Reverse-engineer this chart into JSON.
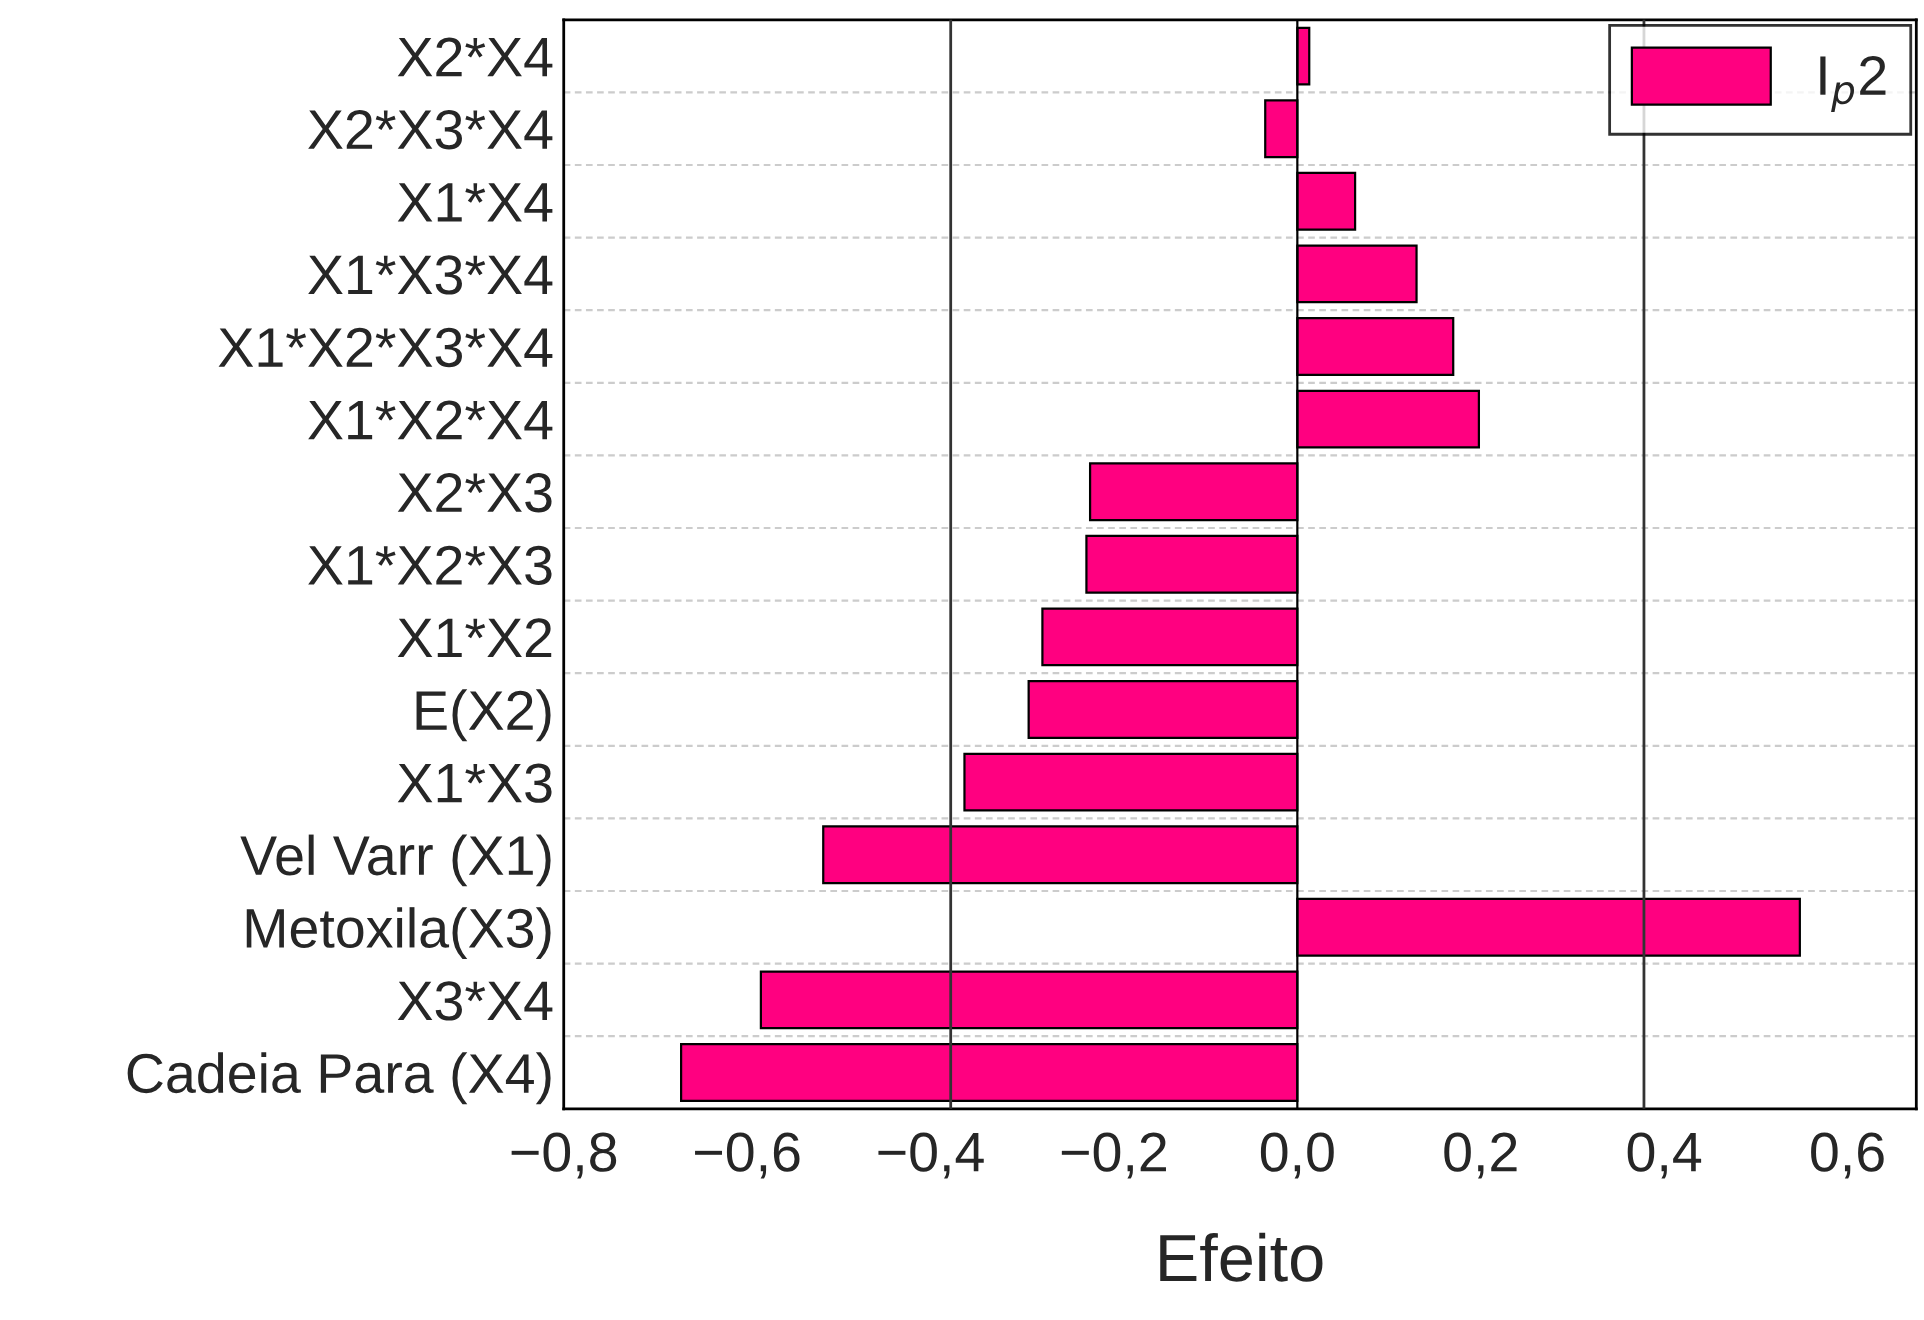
{
  "chart_data": {
    "type": "bar",
    "orientation": "horizontal",
    "xlabel": "Efeito",
    "categories": [
      "X2*X4",
      "X2*X3*X4",
      "X1*X4",
      "X1*X3*X4",
      "X1*X2*X3*X4",
      "X1*X2*X4",
      "X2*X3",
      "X1*X2*X3",
      "X1*X2",
      "E(X2)",
      "X1*X3",
      "Vel Varr (X1)",
      "Metoxila(X3)",
      "X3*X4",
      "Cadeia Para (X4)"
    ],
    "series": [
      {
        "name": "I$_{p}$2",
        "color": "#ff0080",
        "values": [
          0.013,
          -0.035,
          0.063,
          0.13,
          0.17,
          0.198,
          -0.226,
          -0.23,
          -0.278,
          -0.293,
          -0.363,
          -0.517,
          0.548,
          -0.585,
          -0.672
        ]
      }
    ],
    "xlim": [
      -0.8,
      0.675
    ],
    "xticks": [
      {
        "value": -0.8,
        "label": "−0,8"
      },
      {
        "value": -0.6,
        "label": "−0,6"
      },
      {
        "value": -0.4,
        "label": "−0,4"
      },
      {
        "value": -0.2,
        "label": "−0,2"
      },
      {
        "value": 0.0,
        "label": "0,0"
      },
      {
        "value": 0.2,
        "label": "0,2"
      },
      {
        "value": 0.4,
        "label": "0,4"
      },
      {
        "value": 0.6,
        "label": "0,6"
      }
    ],
    "ref_lines": [
      {
        "axis": "x",
        "value": -0.378,
        "color": "#333333"
      },
      {
        "axis": "x",
        "value": 0.378,
        "color": "#333333"
      }
    ],
    "grid": "y",
    "legend": "top right"
  }
}
